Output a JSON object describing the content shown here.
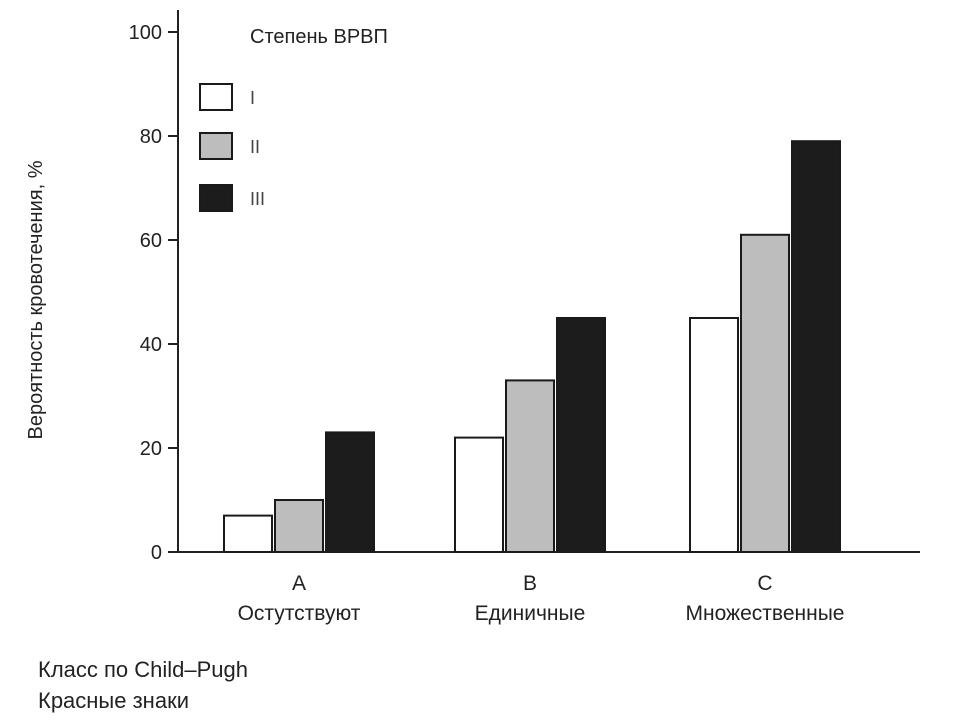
{
  "chart_data": {
    "type": "bar",
    "ylabel": "Вероятность кровотечения, %",
    "ylim": [
      0,
      100
    ],
    "yticks": [
      0,
      20,
      40,
      60,
      80,
      100
    ],
    "categories": [
      {
        "letter": "A",
        "name": "Остутствуют"
      },
      {
        "letter": "B",
        "name": "Единичные"
      },
      {
        "letter": "C",
        "name": "Множественные"
      }
    ],
    "legend_title": "Степень ВРВП",
    "legend_position": "top-left",
    "grid": false,
    "series": [
      {
        "name": "I",
        "color": "#ffffff",
        "values": [
          7,
          22,
          45
        ]
      },
      {
        "name": "II",
        "color": "#bdbdbd",
        "values": [
          10,
          33,
          61
        ]
      },
      {
        "name": "III",
        "color": "#1c1c1c",
        "values": [
          23,
          45,
          79
        ]
      }
    ]
  },
  "footnotes": {
    "line1": "Класс по Child–Pugh",
    "line2": "Красные знаки"
  }
}
